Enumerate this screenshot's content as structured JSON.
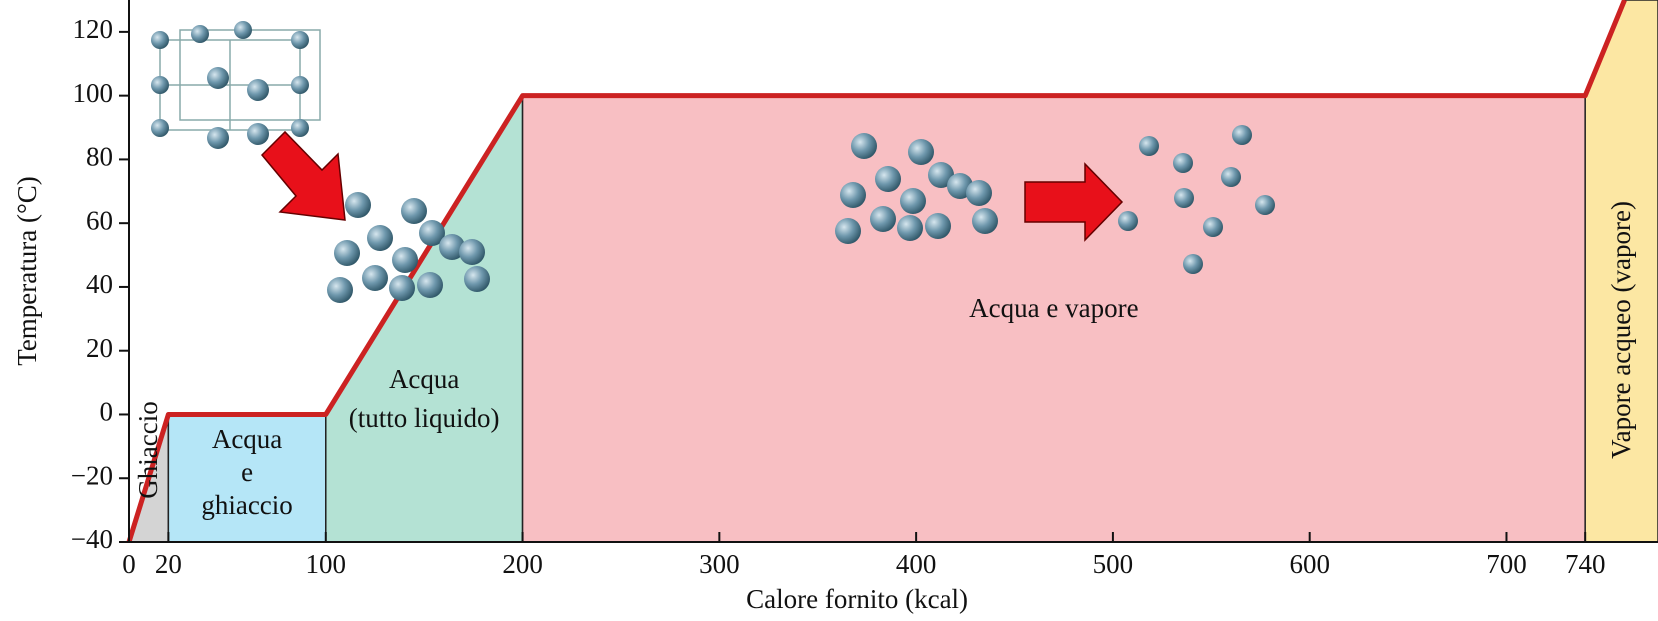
{
  "chart_data": {
    "type": "line",
    "x_label": "Calore fornito (kcal)",
    "y_label": "Temperatura (°C)",
    "x": [
      0,
      20,
      100,
      200,
      740,
      760
    ],
    "values": [
      -40,
      0,
      0,
      100,
      100,
      130
    ],
    "color": "#cc2222",
    "xlim": [
      0,
      777
    ],
    "ylim": [
      -40,
      130
    ],
    "xticks": [
      0,
      20,
      100,
      200,
      300,
      400,
      500,
      600,
      700,
      740
    ],
    "yticks": [
      {
        "value": -40,
        "label": "−40"
      },
      {
        "value": -20,
        "label": "−20"
      },
      0,
      20,
      40,
      60,
      80,
      100,
      120
    ],
    "regions": [
      {
        "lines": [
          "Ghiaccio"
        ],
        "x0": 0,
        "x1": 20,
        "color": "#d4d4d4",
        "rotated": true
      },
      {
        "lines": [
          "Acqua",
          "e",
          "ghiaccio"
        ],
        "x0": 20,
        "x1": 100,
        "color": "#b5e6f7",
        "rotated": false
      },
      {
        "lines": [
          "Acqua",
          "(tutto liquido)"
        ],
        "x0": 100,
        "x1": 200,
        "color": "#b4e2d4",
        "rotated": false
      },
      {
        "lines": [
          "Acqua e vapore"
        ],
        "x0": 200,
        "x1": 740,
        "color": "#f8bfc3",
        "rotated": false
      },
      {
        "lines": [
          "Vapore acqueo (vapore)"
        ],
        "x0": 740,
        "x1": 777,
        "color": "#fce7a3",
        "rotated": true
      }
    ]
  }
}
